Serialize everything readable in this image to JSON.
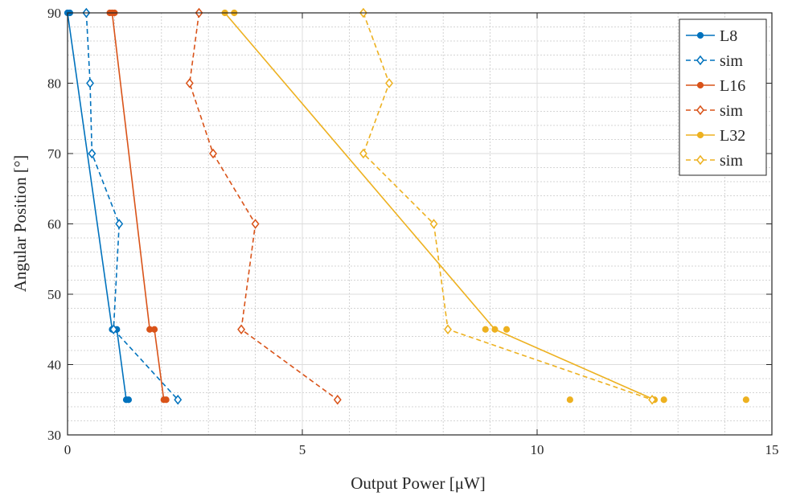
{
  "chart_data": {
    "type": "line",
    "xlabel": "Output Power [μW]",
    "ylabel": "Angular Position [°]",
    "xlim": [
      0,
      15
    ],
    "ylim": [
      30,
      90
    ],
    "xticks": [
      "0",
      "5",
      "10",
      "15"
    ],
    "yticks": [
      "30",
      "40",
      "50",
      "60",
      "70",
      "80",
      "90"
    ],
    "grid": true,
    "minor_grid": true,
    "legend_position": "top-right",
    "series": [
      {
        "name": "L8",
        "style": "solid-dot",
        "color": "#0072BD",
        "points": [
          [
            0,
            90
          ],
          [
            0.95,
            45
          ],
          [
            1.05,
            45
          ],
          [
            1.25,
            35
          ]
        ],
        "extra_markers": [
          [
            0.05,
            90
          ],
          [
            1.3,
            35
          ]
        ]
      },
      {
        "name": "sim",
        "style": "dashed-diamond",
        "color": "#0072BD",
        "points": [
          [
            0.4,
            90
          ],
          [
            0.48,
            80
          ],
          [
            0.52,
            70
          ],
          [
            1.1,
            60
          ],
          [
            0.98,
            45
          ],
          [
            2.35,
            35
          ]
        ]
      },
      {
        "name": "L16",
        "style": "solid-dot",
        "color": "#D95319",
        "points": [
          [
            0.95,
            90
          ],
          [
            1.75,
            45
          ],
          [
            1.85,
            45
          ],
          [
            2.05,
            35
          ]
        ],
        "extra_markers": [
          [
            0.9,
            90
          ],
          [
            1.0,
            90
          ],
          [
            2.1,
            35
          ]
        ]
      },
      {
        "name": "sim",
        "style": "dashed-diamond",
        "color": "#D95319",
        "points": [
          [
            2.8,
            90
          ],
          [
            2.6,
            80
          ],
          [
            3.1,
            70
          ],
          [
            4.0,
            60
          ],
          [
            3.7,
            45
          ],
          [
            5.75,
            35
          ]
        ]
      },
      {
        "name": "L32",
        "style": "solid-dot",
        "color": "#EDB120",
        "points": [
          [
            3.35,
            90
          ],
          [
            9.1,
            45
          ],
          [
            12.5,
            35
          ]
        ],
        "extra_markers": [
          [
            3.55,
            90
          ],
          [
            8.9,
            45
          ],
          [
            9.35,
            45
          ],
          [
            12.7,
            35
          ],
          [
            10.7,
            35
          ],
          [
            14.45,
            35
          ]
        ]
      },
      {
        "name": "sim",
        "style": "dashed-diamond",
        "color": "#EDB120",
        "points": [
          [
            6.3,
            90
          ],
          [
            6.85,
            80
          ],
          [
            6.3,
            70
          ],
          [
            7.8,
            60
          ],
          [
            8.1,
            45
          ],
          [
            12.45,
            35
          ]
        ]
      }
    ]
  }
}
